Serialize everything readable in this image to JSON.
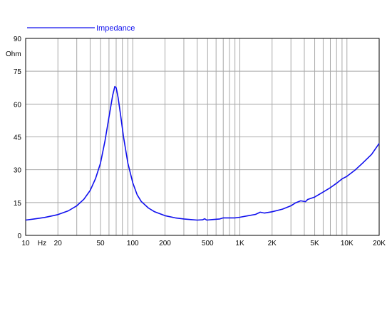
{
  "chart_data": {
    "type": "line",
    "x_scale": "log",
    "xlim": [
      10,
      20000
    ],
    "ylim": [
      0,
      90
    ],
    "grid": true,
    "legend_position": "top-left",
    "ylabel": "Ohm",
    "x_unit_label": "Hz",
    "x_ticks": [
      {
        "value": 10,
        "label": "10"
      },
      {
        "value": 20,
        "label": "20"
      },
      {
        "value": 50,
        "label": "50"
      },
      {
        "value": 100,
        "label": "100"
      },
      {
        "value": 200,
        "label": "200"
      },
      {
        "value": 500,
        "label": "500"
      },
      {
        "value": 1000,
        "label": "1K"
      },
      {
        "value": 2000,
        "label": "2K"
      },
      {
        "value": 5000,
        "label": "5K"
      },
      {
        "value": 10000,
        "label": "10K"
      },
      {
        "value": 20000,
        "label": "20K"
      }
    ],
    "y_ticks": [
      {
        "value": 0,
        "label": "0"
      },
      {
        "value": 15,
        "label": "15"
      },
      {
        "value": 30,
        "label": "30"
      },
      {
        "value": 45,
        "label": "45"
      },
      {
        "value": 60,
        "label": "60"
      },
      {
        "value": 75,
        "label": "75"
      },
      {
        "value": 90,
        "label": "90"
      }
    ],
    "series": [
      {
        "name": "Impedance",
        "color": "#1010ee",
        "points": [
          [
            10,
            7.0
          ],
          [
            12,
            7.5
          ],
          [
            15,
            8.2
          ],
          [
            18,
            9.0
          ],
          [
            20,
            9.5
          ],
          [
            25,
            11.2
          ],
          [
            30,
            13.5
          ],
          [
            35,
            16.5
          ],
          [
            40,
            20.5
          ],
          [
            45,
            26.0
          ],
          [
            50,
            33.0
          ],
          [
            55,
            43.0
          ],
          [
            60,
            54.0
          ],
          [
            65,
            64.0
          ],
          [
            68,
            68.0
          ],
          [
            70,
            67.5
          ],
          [
            73,
            63.0
          ],
          [
            77,
            55.0
          ],
          [
            82,
            45.0
          ],
          [
            90,
            33.0
          ],
          [
            100,
            24.0
          ],
          [
            110,
            18.5
          ],
          [
            120,
            15.5
          ],
          [
            140,
            12.5
          ],
          [
            160,
            10.8
          ],
          [
            200,
            9.0
          ],
          [
            250,
            8.0
          ],
          [
            300,
            7.5
          ],
          [
            350,
            7.2
          ],
          [
            400,
            7.0
          ],
          [
            450,
            7.1
          ],
          [
            470,
            7.6
          ],
          [
            490,
            7.0
          ],
          [
            550,
            7.2
          ],
          [
            650,
            7.5
          ],
          [
            700,
            8.0
          ],
          [
            800,
            8.0
          ],
          [
            900,
            8.0
          ],
          [
            1000,
            8.3
          ],
          [
            1200,
            9.0
          ],
          [
            1400,
            9.6
          ],
          [
            1550,
            10.6
          ],
          [
            1700,
            10.2
          ],
          [
            2000,
            10.8
          ],
          [
            2500,
            12.0
          ],
          [
            3000,
            13.5
          ],
          [
            3300,
            14.8
          ],
          [
            3700,
            15.8
          ],
          [
            4100,
            15.4
          ],
          [
            4300,
            16.4
          ],
          [
            5000,
            17.5
          ],
          [
            6000,
            19.8
          ],
          [
            7000,
            21.8
          ],
          [
            8000,
            23.8
          ],
          [
            9000,
            25.8
          ],
          [
            10000,
            27.0
          ],
          [
            12000,
            30.0
          ],
          [
            14000,
            33.0
          ],
          [
            17000,
            37.0
          ],
          [
            20000,
            42.0
          ]
        ]
      }
    ]
  }
}
